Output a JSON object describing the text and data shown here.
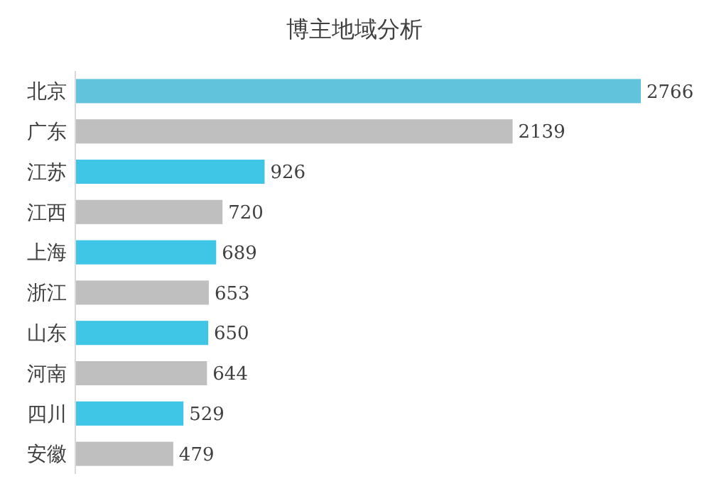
{
  "chart_data": {
    "type": "bar",
    "title": "博主地域分析",
    "orientation": "horizontal",
    "categories": [
      "北京",
      "广东",
      "江苏",
      "江西",
      "上海",
      "浙江",
      "山东",
      "河南",
      "四川",
      "安徽"
    ],
    "values": [
      2766,
      2139,
      926,
      720,
      689,
      653,
      650,
      644,
      529,
      479
    ],
    "colors": [
      "#62c3dd",
      "#bfbfbf",
      "#3fc5e5",
      "#bfbfbf",
      "#3fc5e5",
      "#bfbfbf",
      "#3fc5e5",
      "#bfbfbf",
      "#3fc5e5",
      "#bfbfbf"
    ],
    "data_labels": true
  }
}
